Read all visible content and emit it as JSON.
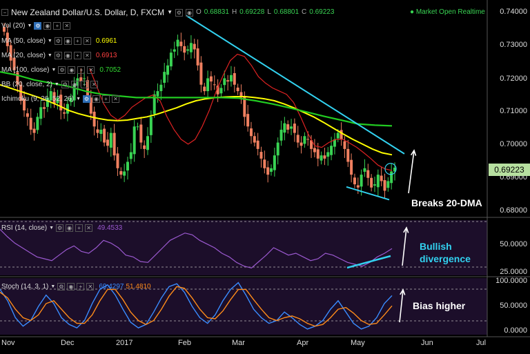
{
  "header": {
    "title": "New Zealand Dollar/U.S. Dollar, D, FXCM",
    "o_label": "O",
    "o_value": "0.68831",
    "h_label": "H",
    "h_value": "0.69228",
    "l_label": "L",
    "l_value": "0.68801",
    "c_label": "C",
    "c_value": "0.69223",
    "status": "Market Open Realtime"
  },
  "indicators": [
    {
      "label": "Vol (20)",
      "value": "",
      "color": "#d8d8d8"
    },
    {
      "label": "MA (50, close)",
      "value": "0.6961",
      "color": "#ffff00"
    },
    {
      "label": "MA (20, close)",
      "value": "0.6913",
      "color": "#ff4040"
    },
    {
      "label": "MA (100, close)",
      "value": "0.7052",
      "color": "#33dd33"
    },
    {
      "label": "BB (20, close, 2)",
      "value": "",
      "color": "#d8d8d8"
    },
    {
      "label": "Ichimoku (9, 26, 52, 26)",
      "value": "",
      "color": "#d8d8d8"
    }
  ],
  "rsi": {
    "label": "RSI (14, close)",
    "value": "49.4533"
  },
  "stoch": {
    "label": "Stoch (14, 3, 1)",
    "k_value": "69.4297",
    "d_value": "51.4810"
  },
  "current_price": "0.69223",
  "annotations": {
    "main": "Breaks 20-DMA",
    "rsi_line1": "Bullish",
    "rsi_line2": "divergence",
    "stoch": "Bias higher"
  },
  "colors": {
    "up": "#39d353",
    "down": "#f08060",
    "ma50": "#ffff00",
    "ma20": "#dd2222",
    "ma100": "#22cc22",
    "trend": "#32d2f0",
    "rsi": "#9b59d0",
    "stoch_k": "#3a8cff",
    "stoch_d": "#ff8c1a",
    "panel": "#1c0e2a",
    "arrow": "#ffffff"
  },
  "chart_data": {
    "type": "line",
    "title": "New Zealand Dollar/U.S. Dollar, D, FXCM",
    "x_ticks": [
      "Nov",
      "Dec",
      "2017",
      "Feb",
      "Mar",
      "Apr",
      "May",
      "Jun",
      "Jul"
    ],
    "y_ticks_price": [
      "0.74000",
      "0.73000",
      "0.72000",
      "0.71000",
      "0.70000",
      "0.69000",
      "0.68000"
    ],
    "y_ticks_rsi": [
      "50.0000",
      "25.0000"
    ],
    "y_ticks_stoch": [
      "100.0000",
      "50.0000",
      "0.0000"
    ],
    "ylim_price": [
      0.678,
      0.7405
    ],
    "ylim_rsi": [
      20,
      80
    ],
    "ylim_stoch": [
      0,
      100
    ],
    "series": [
      {
        "name": "Close",
        "values": [
          0.7345,
          0.73,
          0.7255,
          0.7225,
          0.718,
          0.713,
          0.71,
          0.708,
          0.704,
          0.703,
          0.708,
          0.711,
          0.7105,
          0.714,
          0.716,
          0.712,
          0.714,
          0.71,
          0.709,
          0.712,
          0.714,
          0.718,
          0.72,
          0.719,
          0.72,
          0.714,
          0.709,
          0.705,
          0.703,
          0.704,
          0.7,
          0.699,
          0.703,
          0.696,
          0.692,
          0.69,
          0.691,
          0.694,
          0.697,
          0.705,
          0.705,
          0.7,
          0.698,
          0.702,
          0.708,
          0.715,
          0.716,
          0.718,
          0.722,
          0.724,
          0.728,
          0.729,
          0.732,
          0.73,
          0.728,
          0.729,
          0.731,
          0.729,
          0.724,
          0.718,
          0.716,
          0.72,
          0.719,
          0.718,
          0.715,
          0.717,
          0.72,
          0.719,
          0.721,
          0.718,
          0.716,
          0.714,
          0.708,
          0.705,
          0.702,
          0.7,
          0.698,
          0.695,
          0.692,
          0.69,
          0.692,
          0.696,
          0.7,
          0.704,
          0.706,
          0.704,
          0.705,
          0.703,
          0.7,
          0.699,
          0.702,
          0.701,
          0.698,
          0.697,
          0.695,
          0.696,
          0.695,
          0.697,
          0.699,
          0.701,
          0.703,
          0.701,
          0.698,
          0.694,
          0.69,
          0.687,
          0.686,
          0.69,
          0.692,
          0.689,
          0.686,
          0.687,
          0.69,
          0.688,
          0.685,
          0.688,
          0.691,
          0.6922
        ]
      },
      {
        "name": "MA (50, close)",
        "values": [
          0.718,
          0.717,
          0.716,
          0.715,
          0.714,
          0.7128,
          0.7115,
          0.71,
          0.709,
          0.7082,
          0.7075,
          0.707,
          0.7068,
          0.707,
          0.7075,
          0.708,
          0.7088,
          0.7098,
          0.7108,
          0.712,
          0.713,
          0.7136,
          0.714,
          0.7142,
          0.7143,
          0.7143,
          0.714,
          0.7136,
          0.713,
          0.712,
          0.7108,
          0.7094,
          0.708,
          0.7063,
          0.7045,
          0.7027,
          0.701,
          0.6995,
          0.698,
          0.6968,
          0.6962
        ]
      },
      {
        "name": "MA (20, close)",
        "values": [
          0.723,
          0.7175,
          0.712,
          0.7085,
          0.707,
          0.7085,
          0.711,
          0.7125,
          0.714,
          0.7148,
          0.713,
          0.708,
          0.704,
          0.701,
          0.6995,
          0.701,
          0.705,
          0.71,
          0.716,
          0.721,
          0.7255,
          0.7275,
          0.7268,
          0.724,
          0.7205,
          0.7185,
          0.717,
          0.716,
          0.715,
          0.7125,
          0.708,
          0.703,
          0.699,
          0.6985,
          0.7,
          0.701,
          0.701,
          0.6998,
          0.6985,
          0.6968,
          0.695,
          0.693,
          0.6918,
          0.6913
        ]
      },
      {
        "name": "MA (100, close)",
        "values": [
          0.722,
          0.721,
          0.7195,
          0.7185,
          0.7175,
          0.716,
          0.715,
          0.7145,
          0.714,
          0.714,
          0.714,
          0.714,
          0.714,
          0.714,
          0.7138,
          0.713,
          0.712,
          0.7108,
          0.7095,
          0.7082,
          0.707,
          0.7058,
          0.7054,
          0.7052
        ]
      },
      {
        "name": "RSI (14, close)",
        "values": [
          70,
          62,
          55,
          50,
          45,
          40,
          38,
          36,
          42,
          48,
          52,
          46,
          44,
          50,
          58,
          55,
          50,
          42,
          40,
          35,
          34,
          42,
          50,
          58,
          62,
          66,
          64,
          58,
          54,
          50,
          44,
          40,
          34,
          30,
          28,
          35,
          42,
          50,
          46,
          42,
          44,
          40,
          36,
          38,
          44,
          42,
          38,
          34,
          32,
          30,
          34,
          40,
          44,
          49
        ]
      },
      {
        "name": "Stoch %K",
        "values": [
          80,
          60,
          30,
          15,
          25,
          50,
          70,
          55,
          30,
          18,
          12,
          25,
          55,
          80,
          88,
          70,
          45,
          22,
          12,
          18,
          40,
          65,
          85,
          90,
          75,
          50,
          30,
          20,
          35,
          60,
          80,
          92,
          70,
          45,
          30,
          20,
          25,
          40,
          30,
          18,
          10,
          15,
          25,
          45,
          60,
          40,
          20,
          10,
          15,
          30,
          55,
          69
        ]
      },
      {
        "name": "Stoch %D",
        "values": [
          75,
          65,
          45,
          30,
          25,
          35,
          55,
          60,
          45,
          30,
          20,
          20,
          35,
          60,
          80,
          80,
          62,
          40,
          25,
          18,
          25,
          45,
          68,
          85,
          82,
          65,
          45,
          30,
          28,
          42,
          62,
          80,
          80,
          62,
          45,
          30,
          25,
          30,
          33,
          28,
          20,
          15,
          18,
          30,
          45,
          48,
          38,
          25,
          18,
          20,
          35,
          51
        ]
      }
    ]
  }
}
